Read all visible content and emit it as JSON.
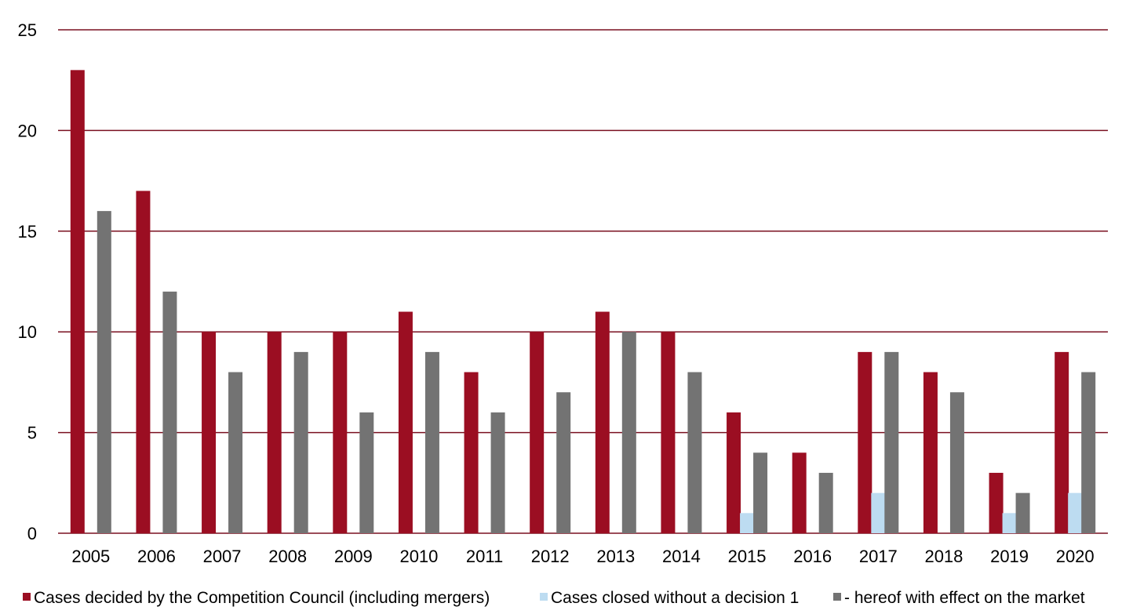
{
  "chart_data": {
    "type": "bar",
    "title": "",
    "xlabel": "",
    "ylabel": "",
    "ylim": [
      0,
      25
    ],
    "yticks": [
      0,
      5,
      10,
      15,
      20,
      25
    ],
    "grid": true,
    "legend_position": "bottom",
    "categories": [
      "2005",
      "2006",
      "2007",
      "2008",
      "2009",
      "2010",
      "2011",
      "2012",
      "2013",
      "2014",
      "2015",
      "2016",
      "2017",
      "2018",
      "2019",
      "2020"
    ],
    "series": [
      {
        "name": "Cases decided by the Competition Council (including mergers)",
        "color": "#9b0e22",
        "values": [
          23,
          17,
          10,
          10,
          10,
          11,
          8,
          10,
          11,
          10,
          6,
          4,
          9,
          8,
          3,
          9
        ]
      },
      {
        "name": "Cases closed without a decision 1",
        "color": "#bddcf1",
        "values": [
          0,
          0,
          0,
          0,
          0,
          0,
          0,
          0,
          0,
          0,
          1,
          0,
          2,
          0,
          1,
          2
        ]
      },
      {
        "name": "- hereof with effect on the market",
        "color": "#737373",
        "values": [
          16,
          12,
          8,
          9,
          6,
          9,
          6,
          7,
          10,
          8,
          4,
          3,
          9,
          7,
          2,
          8
        ]
      }
    ],
    "colors": {
      "grid": "#7a1020",
      "axis": "#7a1020"
    }
  }
}
